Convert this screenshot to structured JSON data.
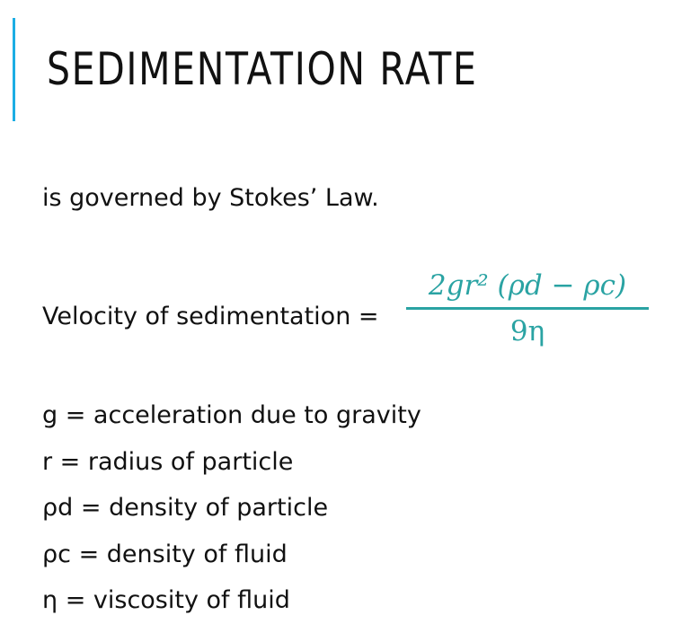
{
  "slide": {
    "title": "SEDIMENTATION RATE",
    "intro": "is governed by Stokes’ Law.",
    "formula": {
      "lhs": "Velocity of sedimentation =",
      "numerator": "2gr² (ρd − ρc)",
      "denominator": "9η",
      "color": "#2aa3a3"
    },
    "definitions": [
      "g = acceleration due to gravity",
      "r = radius of particle",
      "ρd = density of particle",
      "ρc = density of fluid",
      "η = viscosity of fluid"
    ],
    "accent_color": "#1cade4"
  }
}
